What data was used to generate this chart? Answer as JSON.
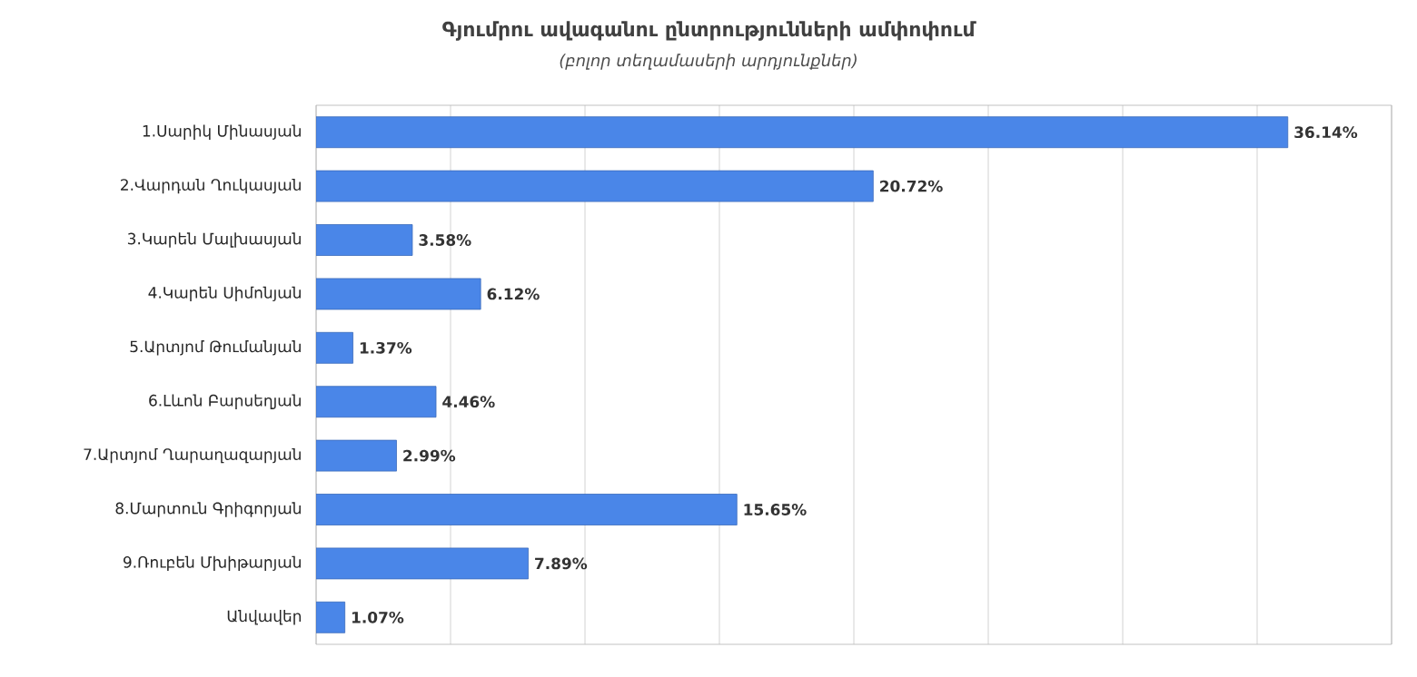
{
  "chart_data": {
    "type": "bar",
    "orientation": "horizontal",
    "title": "Գյումրու ավագանու ընտրությունների ամփոփում",
    "subtitle": "(բոլոր տեղամասերի արդյունքներ)",
    "categories": [
      "1.Սարիկ Մինասյան",
      "2.Վարդան Ղուկասյան",
      "3.Կարեն Մալխասյան",
      "4.Կարեն Սիմոնյան",
      "5.Արտյոմ Թումանյան",
      "6.Լևոն Բարսեղյան",
      "7.Արտյոմ Ղարաղազարյան",
      "8.Մարտուն Գրիգորյան",
      "9.Ռուբեն Մխիթարյան",
      "Անվավեր"
    ],
    "values": [
      36.14,
      20.72,
      3.58,
      6.12,
      1.37,
      4.46,
      2.99,
      15.65,
      7.89,
      1.07
    ],
    "value_labels": [
      "36.14%",
      "20.72%",
      "3.58%",
      "6.12%",
      "1.37%",
      "4.46%",
      "2.99%",
      "15.65%",
      "7.89%",
      "1.07%"
    ],
    "color": "#4a86e8",
    "xlim": [
      0,
      40
    ],
    "xticks": [
      {
        "value": 0,
        "label": null
      },
      {
        "value": 5,
        "label": null
      },
      {
        "value": 10,
        "label": null
      },
      {
        "value": 15,
        "label": null
      },
      {
        "value": 20,
        "label": null
      },
      {
        "value": 25,
        "label": null
      },
      {
        "value": 30,
        "label": null
      },
      {
        "value": 35,
        "label": null
      },
      {
        "value": 40,
        "label": null
      }
    ],
    "tick_labels": "y",
    "grid": "x"
  }
}
